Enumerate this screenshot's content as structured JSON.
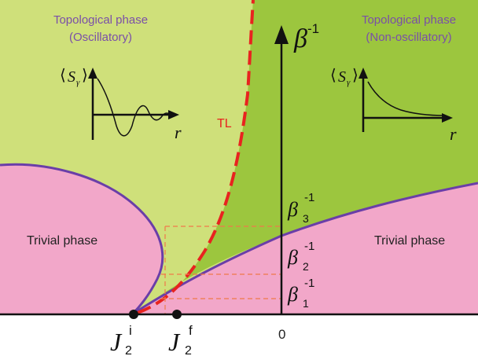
{
  "colors": {
    "trivial": "#f2a7c9",
    "topo_osc": "#cfe07a",
    "topo_nonosc": "#9cc63e",
    "boundary": "#6a3ea8",
    "tl_line": "#e8231f",
    "dashed_guides": "#f07a4a",
    "label_purple": "#7a4fa8",
    "tl_text": "#e8231f",
    "axis": "#111111"
  },
  "labels": {
    "topo_osc_title": "Topological phase",
    "topo_osc_sub": "(Oscillatory)",
    "topo_nonosc_title": "Topological phase",
    "topo_nonosc_sub": "(Non-oscillatory)",
    "trivial_left": "Trivial phase",
    "trivial_right": "Trivial phase",
    "tl": "TL",
    "zero": "0"
  },
  "axis": {
    "beta": "β",
    "beta_sup": "-1"
  },
  "beta_levels": [
    {
      "sym": "β",
      "sub": "3",
      "sup": "-1"
    },
    {
      "sym": "β",
      "sub": "2",
      "sup": "-1"
    },
    {
      "sym": "β",
      "sub": "1",
      "sup": "-1"
    }
  ],
  "j_labels": [
    {
      "sym": "J",
      "sub": "2",
      "sup": "i"
    },
    {
      "sym": "J",
      "sub": "2",
      "sup": "f"
    }
  ],
  "insets": {
    "osc": {
      "s": "S",
      "sub": "γ",
      "r": "r"
    },
    "nonosc": {
      "s": "S",
      "sub": "γ",
      "r": "r"
    }
  },
  "icons": {
    "point_i": "filled-circle-marker",
    "point_f": "filled-circle-marker"
  }
}
